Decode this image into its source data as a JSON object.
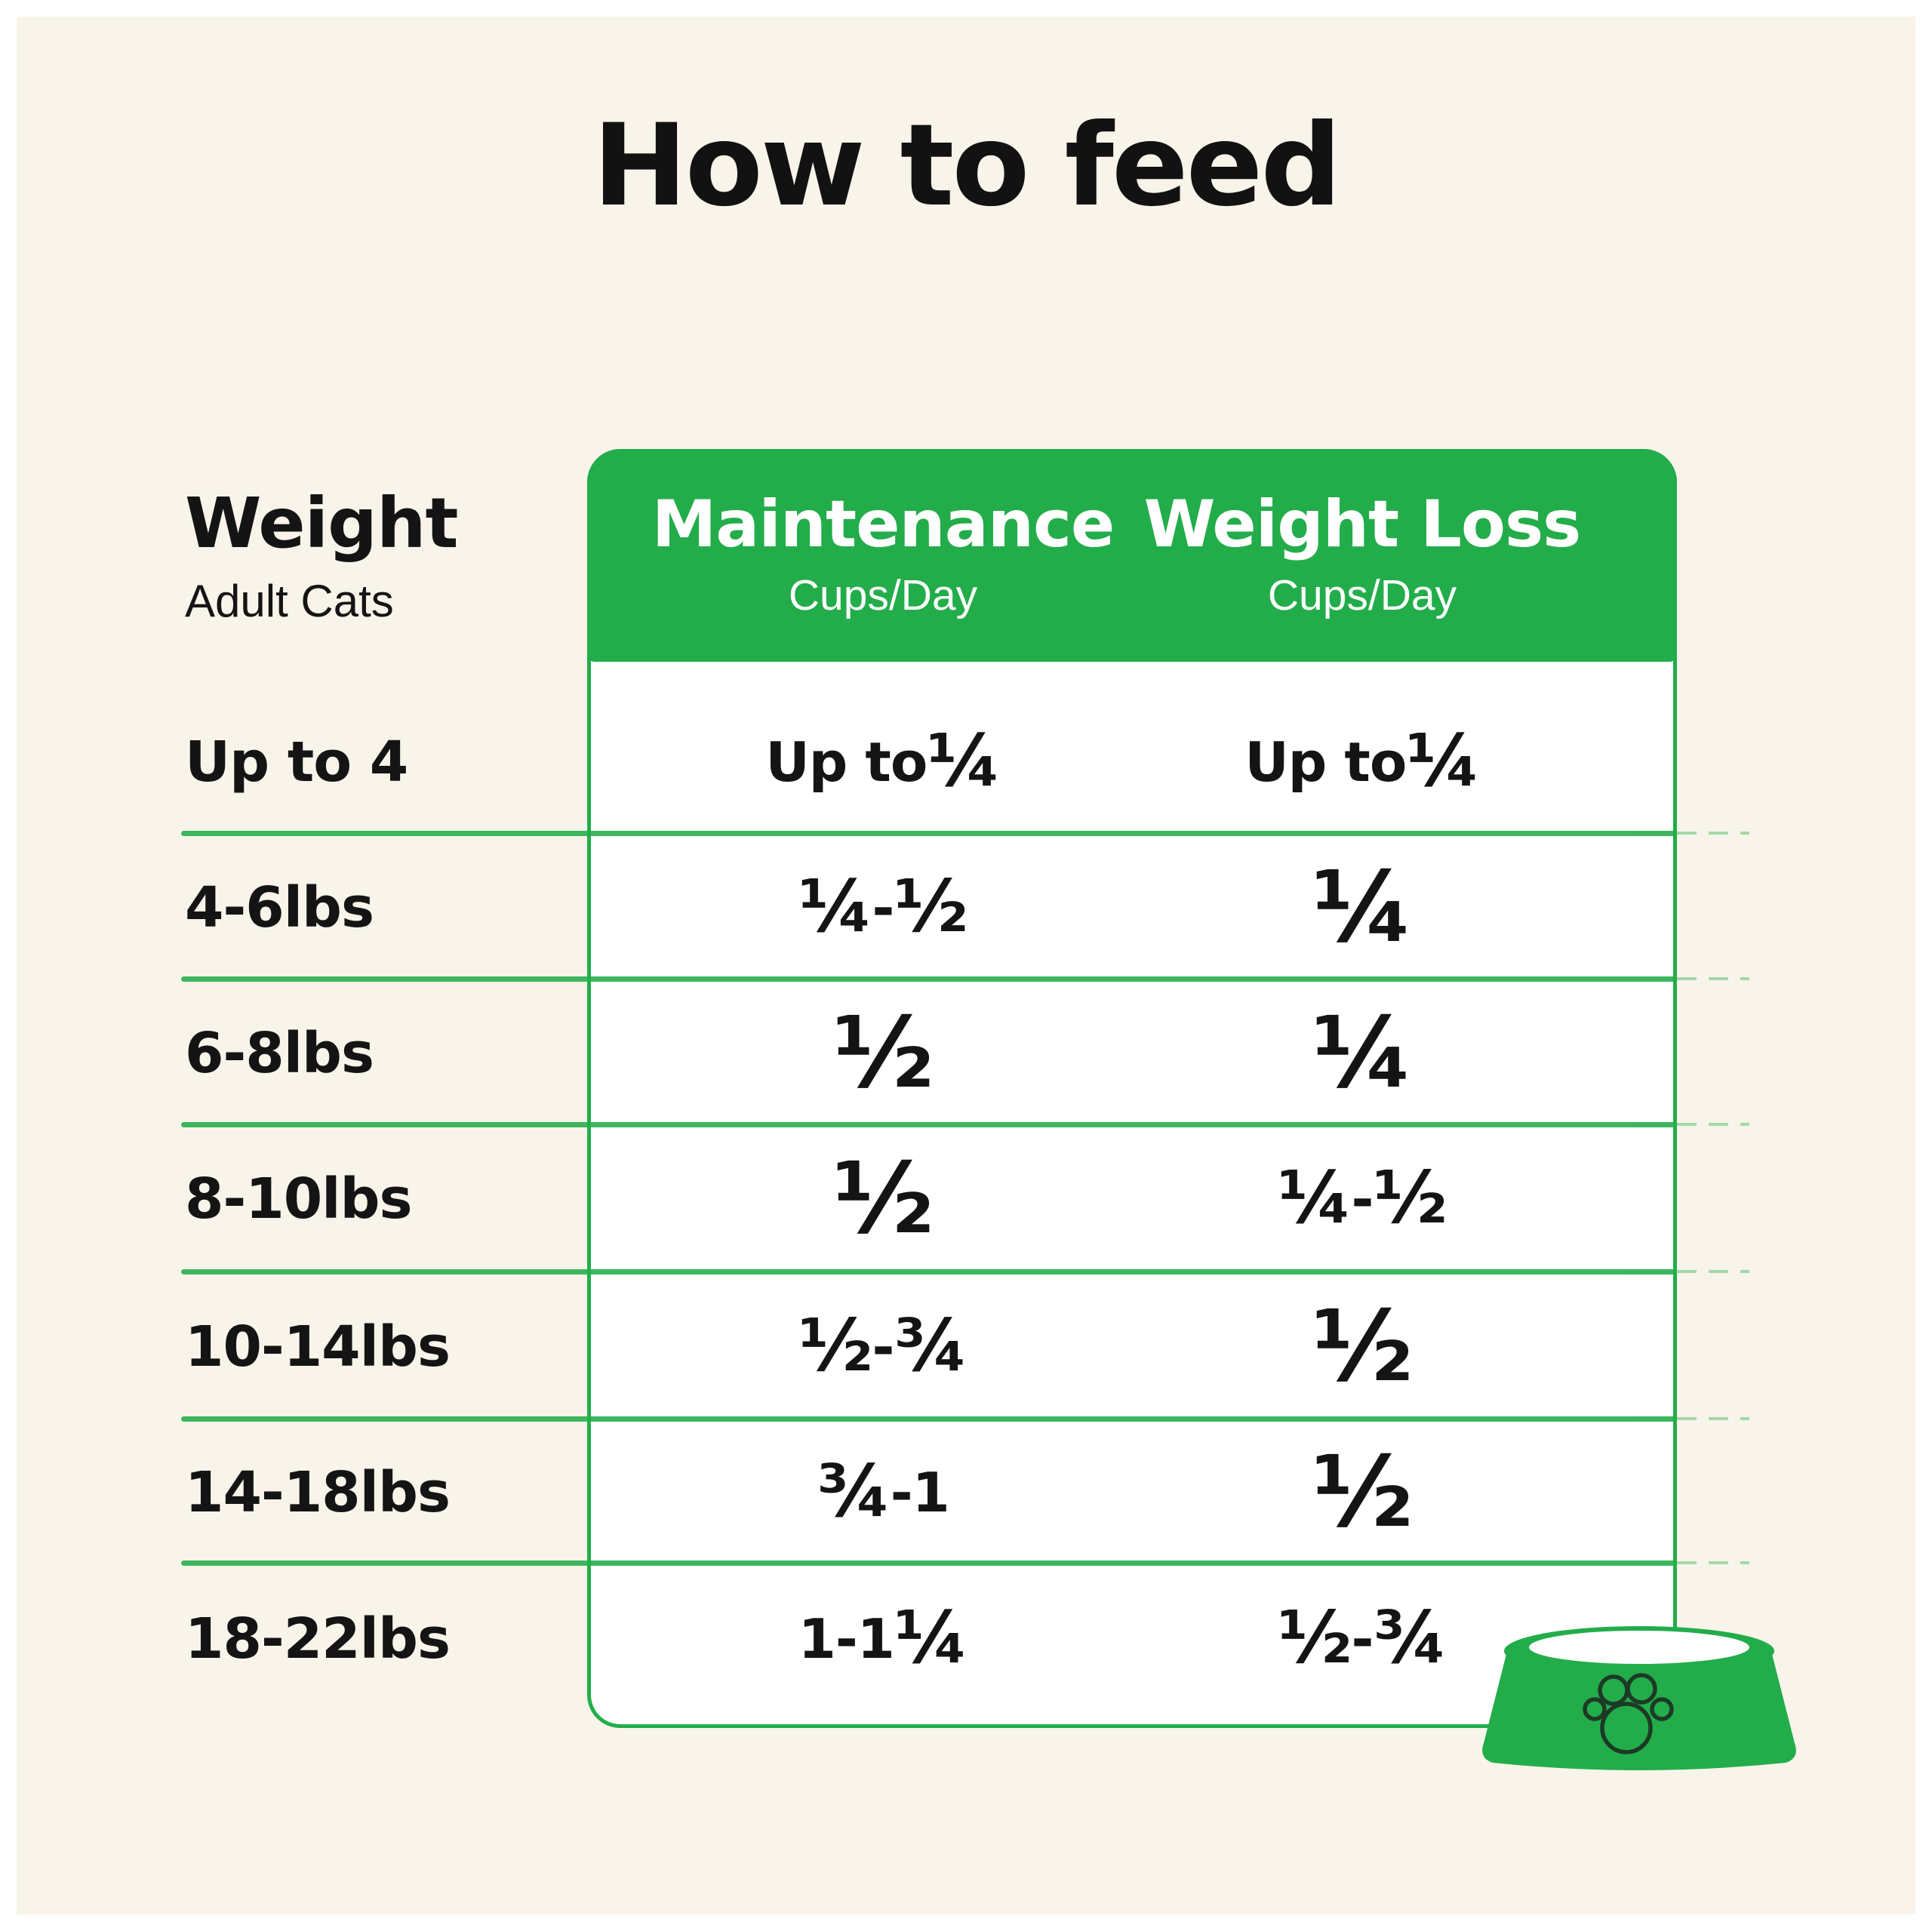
{
  "title": "How to feed",
  "colors": {
    "green": "#22AD4A",
    "background_cream": "#F8F4EA",
    "card_white": "#FFFFFF",
    "text": "#141414",
    "header_text": "#FFFFFF",
    "paw_outline": "#1C3A26"
  },
  "icons": {
    "bowl_icon": "dog-bowl-with-paw-print"
  },
  "chart_data": {
    "type": "table",
    "title": "How to feed",
    "row_header": {
      "label": "Weight",
      "sublabel": "Adult Cats"
    },
    "columns": [
      {
        "label": "Maintenance",
        "unit": "Cups/Day"
      },
      {
        "label": "Weight Loss",
        "unit": "Cups/Day"
      }
    ],
    "rows": [
      {
        "weight": "Up to 4",
        "maintenance": "Up to ¼",
        "weight_loss": "Up to ¼"
      },
      {
        "weight": "4-6lbs",
        "maintenance": "¼-½",
        "weight_loss": "¼"
      },
      {
        "weight": "6-8lbs",
        "maintenance": "½",
        "weight_loss": "¼"
      },
      {
        "weight": "8-10lbs",
        "maintenance": "½",
        "weight_loss": "¼-½"
      },
      {
        "weight": "10-14lbs",
        "maintenance": "½-¾",
        "weight_loss": "½"
      },
      {
        "weight": "14-18lbs",
        "maintenance": "¾-1",
        "weight_loss": "½"
      },
      {
        "weight": "18-22lbs",
        "maintenance": "1-1¼",
        "weight_loss": "½-¾"
      }
    ]
  }
}
